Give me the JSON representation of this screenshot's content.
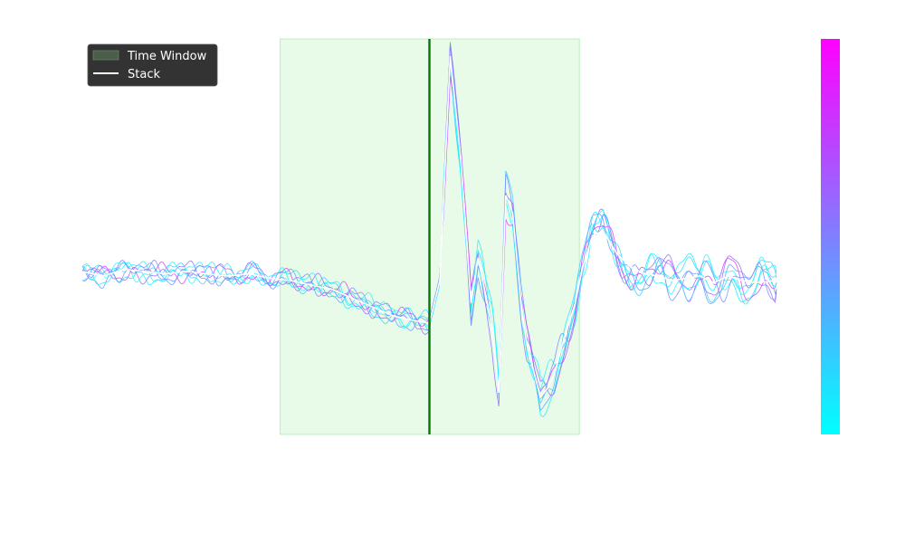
{
  "chart_data": {
    "type": "line",
    "title": "",
    "xlabel": "",
    "ylabel": "",
    "xlim": [
      0,
      1000
    ],
    "ylim": [
      -1.0,
      1.0
    ],
    "grid": false,
    "legend": {
      "placement": "top-left",
      "entries": [
        {
          "label": "Time Window",
          "kind": "patch",
          "color": "#4a5e4a"
        },
        {
          "label": "Stack",
          "kind": "line",
          "color": "#ffffff"
        }
      ]
    },
    "time_window": {
      "start": 285,
      "end": 716,
      "fill_color": "#e8fbe8",
      "edge_color": "#b8f0b8"
    },
    "reference_line": {
      "x": 500,
      "color": "#0a7a0a"
    },
    "colorbar": {
      "colormap": "cool",
      "colors": [
        "#00ffff",
        "#ff00ff"
      ]
    },
    "stack_color": "#ffffff",
    "trace_colors": [
      "#11f0ff",
      "#3ad0ff",
      "#5f9fff",
      "#9966ff",
      "#d13cff",
      "#30e8ff",
      "#20f4ff",
      "#7a86ff"
    ],
    "x": [
      0,
      30,
      60,
      90,
      120,
      150,
      180,
      210,
      240,
      270,
      300,
      330,
      360,
      390,
      420,
      450,
      480,
      500,
      515,
      530,
      545,
      560,
      570,
      580,
      590,
      600,
      610,
      620,
      632,
      640,
      650,
      660,
      670,
      680,
      690,
      700,
      710,
      720,
      735,
      750,
      770,
      790,
      810,
      830,
      850,
      870,
      890,
      910,
      930,
      950,
      970,
      1000
    ],
    "stack_values": [
      0.04,
      0.02,
      0.05,
      0.04,
      0.03,
      0.04,
      0.03,
      0.02,
      0.03,
      0.01,
      0.0,
      -0.02,
      -0.04,
      -0.08,
      -0.12,
      -0.16,
      -0.18,
      -0.19,
      0.0,
      1.0,
      0.55,
      -0.1,
      0.1,
      -0.05,
      -0.2,
      -0.5,
      0.38,
      0.3,
      -0.1,
      -0.28,
      -0.4,
      -0.52,
      -0.48,
      -0.42,
      -0.3,
      -0.2,
      -0.1,
      0.05,
      0.2,
      0.22,
      0.12,
      0.06,
      0.03,
      0.02,
      0.0,
      0.01,
      0.02,
      -0.01,
      0.02,
      0.0,
      -0.01,
      0.0
    ]
  }
}
